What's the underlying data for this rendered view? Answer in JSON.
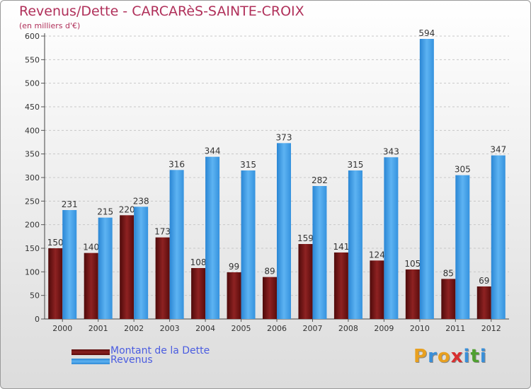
{
  "header": {
    "title": "Revenus/Dette - CARCARèS-SAINTE-CROIX",
    "subtitle": "(en milliers d'€)"
  },
  "chart_data": {
    "type": "bar",
    "categories": [
      "2000",
      "2001",
      "2002",
      "2003",
      "2004",
      "2005",
      "2006",
      "2007",
      "2008",
      "2009",
      "2010",
      "2011",
      "2012"
    ],
    "series": [
      {
        "name": "Montant de la Dette",
        "color": "#7a1616",
        "values": [
          150,
          140,
          220,
          173,
          108,
          99,
          89,
          159,
          141,
          124,
          105,
          85,
          69
        ]
      },
      {
        "name": "Revenus",
        "color": "#3d9ee5",
        "values": [
          231,
          215,
          238,
          316,
          344,
          315,
          373,
          282,
          315,
          343,
          594,
          305,
          347
        ]
      }
    ],
    "ylim": [
      0,
      600
    ],
    "yticks": [
      0,
      50,
      100,
      150,
      200,
      250,
      300,
      350,
      400,
      450,
      500,
      550,
      600
    ],
    "grid": true,
    "legend_position": "bottom-left"
  },
  "legend": [
    {
      "label": "Montant de la Dette",
      "color": "#7a1616"
    },
    {
      "label": "Revenus",
      "color": "#3d9ee5"
    }
  ],
  "logo": {
    "letters": [
      "P",
      "r",
      "o",
      "x",
      "i",
      "t",
      "i"
    ],
    "colors": [
      "#e8a020",
      "#3a8fd8",
      "#e8a020",
      "#d83030",
      "#3a8fd8",
      "#50a030",
      "#3a8fd8"
    ]
  }
}
